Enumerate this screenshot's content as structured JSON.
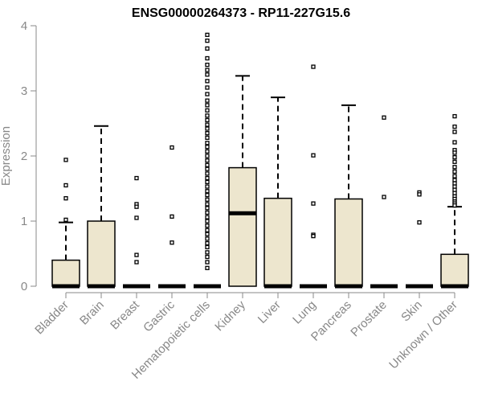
{
  "chart_data": {
    "type": "boxplot",
    "title": "ENSG00000264373 - RP11-227G15.6",
    "ylabel": "Expression",
    "xlabel": "",
    "ylim": [
      0,
      4
    ],
    "yticks": [
      0,
      1,
      2,
      3,
      4
    ],
    "box_fill": "#ede6ce",
    "categories": [
      "Bladder",
      "Brain",
      "Breast",
      "Gastric",
      "Hematopoietic cells",
      "Kidney",
      "Liver",
      "Lung",
      "Pancreas",
      "Prostate",
      "Skin",
      "Unknown / Other"
    ],
    "boxes": [
      {
        "q1": 0,
        "median": 0,
        "q3": 0.4,
        "whisker_low": 0,
        "whisker_high": 0.98,
        "outliers": [
          1.94,
          1.55,
          1.35,
          1.02
        ]
      },
      {
        "q1": 0,
        "median": 0,
        "q3": 1.0,
        "whisker_low": 0,
        "whisker_high": 2.46,
        "outliers": []
      },
      {
        "q1": 0,
        "median": 0,
        "q3": 0,
        "whisker_low": 0,
        "whisker_high": 0,
        "outliers": [
          1.66,
          1.26,
          1.22,
          1.05,
          0.48,
          0.37
        ]
      },
      {
        "q1": 0,
        "median": 0,
        "q3": 0,
        "whisker_low": 0,
        "whisker_high": 0,
        "outliers": [
          2.13,
          1.07,
          0.67
        ]
      },
      {
        "q1": 0,
        "median": 0,
        "q3": 0,
        "whisker_low": 0,
        "whisker_high": 0,
        "outliers": [
          3.86,
          3.77,
          3.65,
          3.5,
          3.4,
          3.32,
          3.25,
          3.15,
          3.05,
          2.95,
          2.85,
          2.78,
          2.7,
          2.62,
          2.55,
          2.48,
          2.42,
          2.35,
          2.28,
          2.2,
          2.14,
          2.07,
          2.0,
          1.93,
          1.86,
          1.8,
          1.73,
          1.66,
          1.6,
          1.53,
          1.46,
          1.4,
          1.33,
          1.26,
          1.2,
          1.13,
          1.06,
          1.0,
          0.93,
          0.86,
          0.8,
          0.73,
          0.66,
          0.6,
          0.52,
          0.45,
          0.37,
          0.28
        ]
      },
      {
        "q1": 0,
        "median": 1.12,
        "q3": 1.82,
        "whisker_low": 0,
        "whisker_high": 3.23,
        "outliers": []
      },
      {
        "q1": 0,
        "median": 0,
        "q3": 1.35,
        "whisker_low": 0,
        "whisker_high": 2.9,
        "outliers": []
      },
      {
        "q1": 0,
        "median": 0,
        "q3": 0,
        "whisker_low": 0,
        "whisker_high": 0,
        "outliers": [
          3.37,
          2.01,
          1.27,
          0.79,
          0.77
        ]
      },
      {
        "q1": 0,
        "median": 0,
        "q3": 1.34,
        "whisker_low": 0,
        "whisker_high": 2.78,
        "outliers": []
      },
      {
        "q1": 0,
        "median": 0,
        "q3": 0,
        "whisker_low": 0,
        "whisker_high": 0,
        "outliers": [
          2.59,
          1.37
        ]
      },
      {
        "q1": 0,
        "median": 0,
        "q3": 0,
        "whisker_low": 0,
        "whisker_high": 0,
        "outliers": [
          1.44,
          1.41,
          0.98
        ]
      },
      {
        "q1": 0,
        "median": 0,
        "q3": 0.49,
        "whisker_low": 0,
        "whisker_high": 1.22,
        "outliers": [
          2.61,
          2.45,
          2.37,
          2.21,
          2.09,
          2.05,
          1.98,
          1.91,
          1.83,
          1.76,
          1.69,
          1.63,
          1.58,
          1.53,
          1.48,
          1.43,
          1.38,
          1.34,
          1.3,
          1.27,
          1.24
        ]
      }
    ]
  }
}
